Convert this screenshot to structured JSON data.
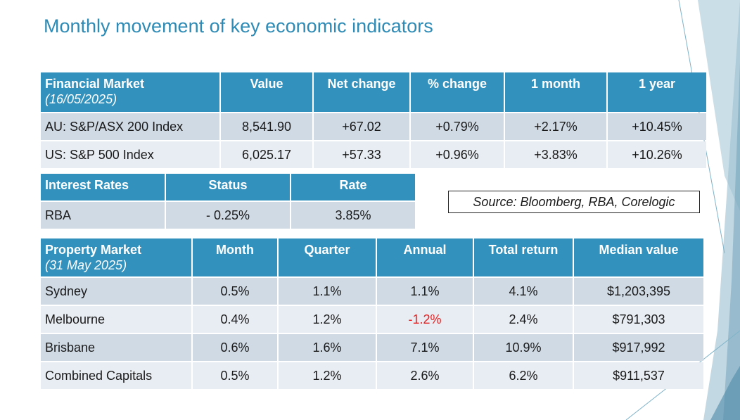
{
  "title": "Monthly movement of key economic indicators",
  "source": "Source:  Bloomberg, RBA, Corelogic",
  "colors": {
    "header": "#3391bd",
    "title": "#2e8bb5",
    "row_odd": "#cfdae5",
    "row_even": "#e8edf3",
    "negative": "#e62020"
  },
  "financial": {
    "header": {
      "label": "Financial Market",
      "date": "(16/05/2025)",
      "cols": [
        "Value",
        "Net change",
        "% change",
        "1 month",
        "1 year"
      ]
    },
    "rows": [
      {
        "name": "AU:  S&P/ASX 200 Index",
        "cells": [
          "8,541.90",
          "+67.02",
          "+0.79%",
          "+2.17%",
          "+10.45%"
        ]
      },
      {
        "name": "US:  S&P 500 Index",
        "cells": [
          "6,025.17",
          "+57.33",
          "+0.96%",
          "+3.83%",
          "+10.26%"
        ]
      }
    ]
  },
  "interest": {
    "header": {
      "label": "Interest Rates",
      "cols": [
        "Status",
        "Rate"
      ]
    },
    "rows": [
      {
        "name": "RBA",
        "cells": [
          "- 0.25%",
          "3.85%"
        ]
      }
    ]
  },
  "property": {
    "header": {
      "label": "Property Market",
      "date": "(31 May 2025)",
      "cols": [
        "Month",
        "Quarter",
        "Annual",
        "Total return",
        "Median value"
      ]
    },
    "rows": [
      {
        "name": "Sydney",
        "cells": [
          "0.5%",
          "1.1%",
          "1.1%",
          "4.1%",
          "$1,203,395"
        ]
      },
      {
        "name": "Melbourne",
        "cells": [
          "0.4%",
          "1.2%",
          "-1.2%",
          "2.4%",
          "$791,303"
        ]
      },
      {
        "name": "Brisbane",
        "cells": [
          "0.6%",
          "1.6%",
          "7.1%",
          "10.9%",
          "$917,992"
        ]
      },
      {
        "name": "Combined Capitals",
        "cells": [
          "0.5%",
          "1.2%",
          "2.6%",
          "6.2%",
          "$911,537"
        ]
      }
    ]
  }
}
